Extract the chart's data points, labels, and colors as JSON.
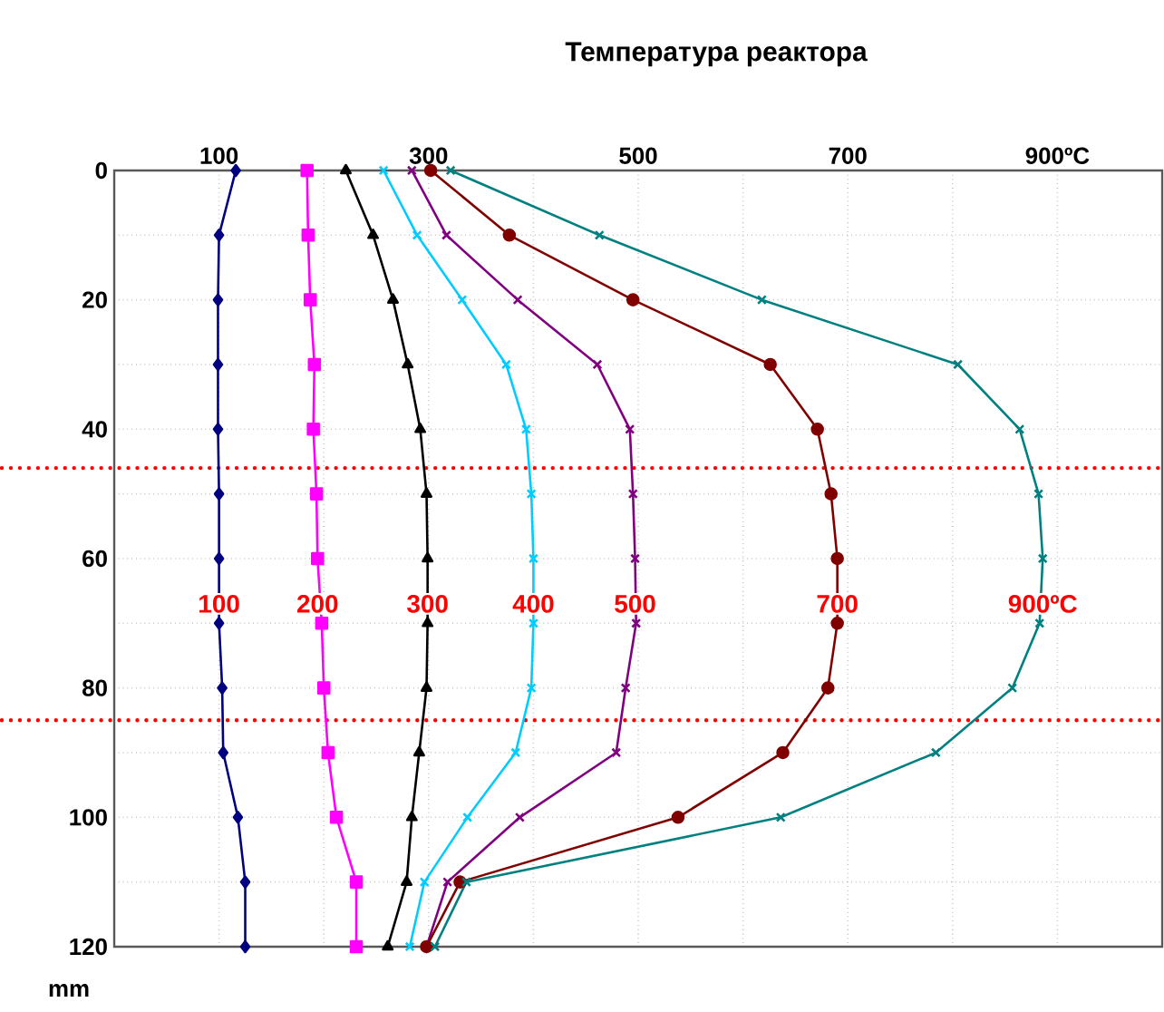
{
  "chart_data": {
    "type": "line",
    "title": "Температура реактора",
    "ylabel": "mm",
    "xlim": [
      0,
      1000
    ],
    "xticks": [
      {
        "value": 0,
        "label": null
      },
      100,
      {
        "value": 200,
        "label": null
      },
      300,
      {
        "value": 400,
        "label": null
      },
      500,
      {
        "value": 600,
        "label": null
      },
      700,
      {
        "value": 800,
        "label": null
      },
      {
        "value": 900,
        "label": "900ºC"
      },
      {
        "value": 1000,
        "label": null
      }
    ],
    "ylim": [
      120,
      0
    ],
    "yticks": [
      0,
      {
        "value": 10,
        "label": null
      },
      20,
      {
        "value": 30,
        "label": null
      },
      40,
      {
        "value": 50,
        "label": null
      },
      60,
      {
        "value": 70,
        "label": null
      },
      80,
      {
        "value": 90,
        "label": null
      },
      100,
      {
        "value": 110,
        "label": null
      },
      120
    ],
    "grid": true,
    "series": [
      {
        "name": "100",
        "color": "#000080",
        "marker": "diamond",
        "x": [
          116,
          100,
          99,
          99,
          99,
          100,
          100,
          100,
          103,
          104,
          118,
          125,
          125
        ],
        "values": [
          0,
          10,
          20,
          30,
          40,
          50,
          60,
          70,
          80,
          90,
          100,
          110,
          120
        ]
      },
      {
        "name": "200",
        "color": "#ff00ff",
        "marker": "square",
        "x": [
          184,
          185,
          187,
          191,
          190,
          193,
          194,
          198,
          200,
          204,
          212,
          231,
          231
        ],
        "values": [
          0,
          10,
          20,
          30,
          40,
          50,
          60,
          70,
          80,
          90,
          100,
          110,
          120
        ]
      },
      {
        "name": "300",
        "color": "#000000",
        "marker": "triangle",
        "x": [
          221,
          247,
          266,
          280,
          292,
          298,
          299,
          299,
          298,
          291,
          284,
          279,
          261
        ],
        "values": [
          0,
          10,
          20,
          30,
          40,
          50,
          60,
          70,
          80,
          90,
          100,
          110,
          120
        ]
      },
      {
        "name": "400",
        "color": "#00ccff",
        "marker": "cross",
        "x": [
          257,
          289,
          332,
          374,
          393,
          398,
          400,
          400,
          398,
          383,
          337,
          296,
          282
        ],
        "values": [
          0,
          10,
          20,
          30,
          40,
          50,
          60,
          70,
          80,
          90,
          100,
          110,
          120
        ]
      },
      {
        "name": "500",
        "color": "#800080",
        "marker": "cross",
        "x": [
          284,
          317,
          385,
          461,
          492,
          495,
          497,
          498,
          488,
          479,
          387,
          318,
          298
        ],
        "values": [
          0,
          10,
          20,
          30,
          40,
          50,
          60,
          70,
          80,
          90,
          100,
          110,
          120
        ]
      },
      {
        "name": "700",
        "color": "#800000",
        "marker": "circle",
        "x": [
          302,
          377,
          495,
          626,
          671,
          684,
          690,
          690,
          681,
          638,
          538,
          330,
          298
        ],
        "values": [
          0,
          10,
          20,
          30,
          40,
          50,
          60,
          70,
          80,
          90,
          100,
          110,
          120
        ]
      },
      {
        "name": "900ºC",
        "color": "#008080",
        "marker": "cross",
        "x": [
          321,
          463,
          618,
          805,
          864,
          882,
          886,
          883,
          857,
          784,
          636,
          336,
          306
        ],
        "values": [
          0,
          10,
          20,
          30,
          40,
          50,
          60,
          70,
          80,
          90,
          100,
          110,
          120
        ]
      }
    ],
    "ref_lines": [
      {
        "axis": "y",
        "value": 46,
        "color": "#ff0000",
        "line_style": "dotted"
      },
      {
        "axis": "y",
        "value": 85,
        "color": "#ff0000",
        "line_style": "dotted"
      }
    ]
  }
}
